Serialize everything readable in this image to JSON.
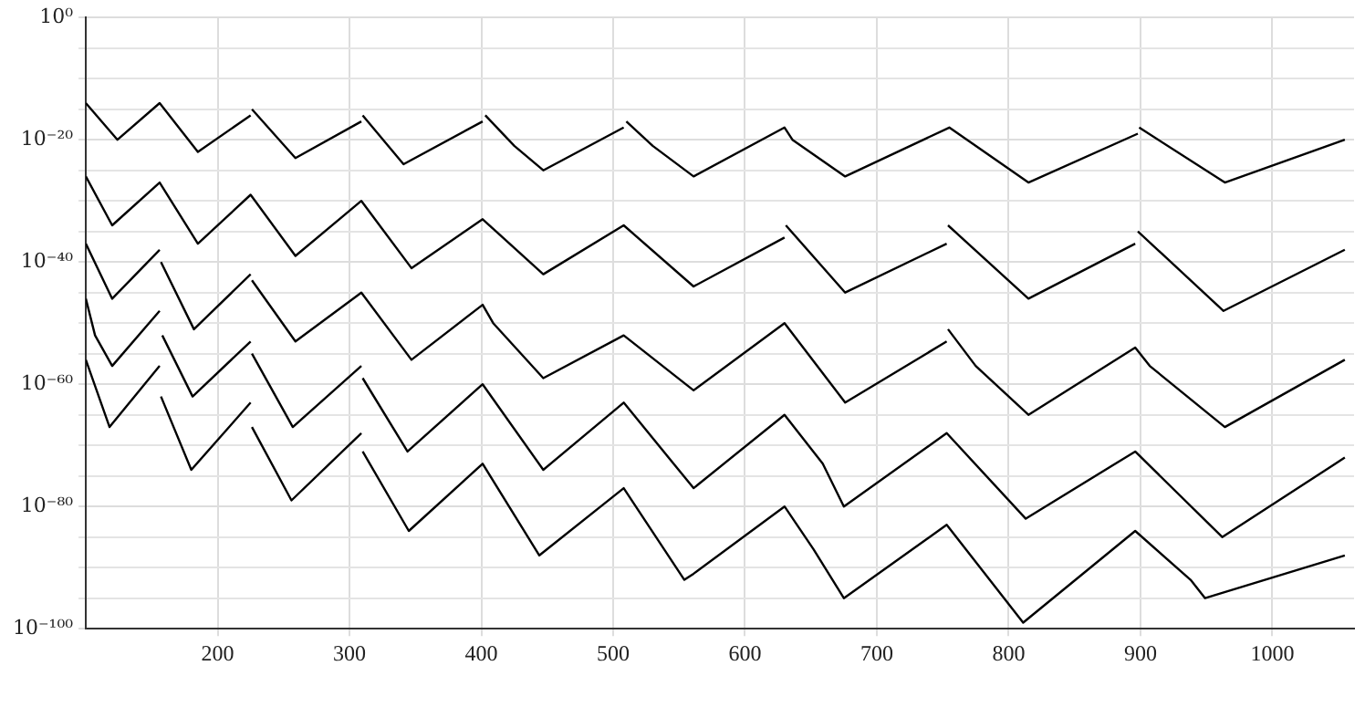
{
  "chart_data": {
    "type": "line",
    "marker": "none",
    "line_style": "solid",
    "grid": true,
    "legend": false,
    "log": "y",
    "xlim": [
      100,
      1062
    ],
    "xticks": [
      200,
      300,
      400,
      500,
      600,
      700,
      800,
      900,
      1000
    ],
    "ylim": [
      1e-100,
      1
    ],
    "yticks": [
      {
        "value": 1,
        "label": "10⁰"
      },
      {
        "value": 1e-05,
        "label": null
      },
      {
        "value": 1e-10,
        "label": null
      },
      {
        "value": 1e-15,
        "label": null
      },
      {
        "value": 1e-20,
        "label": "10⁻²⁰"
      },
      {
        "value": 1e-25,
        "label": null
      },
      {
        "value": 1e-30,
        "label": null
      },
      {
        "value": 1e-35,
        "label": null
      },
      {
        "value": 1e-40,
        "label": "10⁻⁴⁰"
      },
      {
        "value": 1e-45,
        "label": null
      },
      {
        "value": 1e-50,
        "label": null
      },
      {
        "value": 1e-55,
        "label": null
      },
      {
        "value": 1e-60,
        "label": "10⁻⁶⁰"
      },
      {
        "value": 1e-65,
        "label": null
      },
      {
        "value": 1e-70,
        "label": null
      },
      {
        "value": 1e-75,
        "label": null
      },
      {
        "value": 1e-80,
        "label": "10⁻⁸⁰"
      },
      {
        "value": 1e-85,
        "label": null
      },
      {
        "value": 1e-90,
        "label": null
      },
      {
        "value": 1e-95,
        "label": null
      },
      {
        "value": 1e-100,
        "label": "10⁻¹⁰⁰"
      }
    ],
    "series": [
      {
        "color": "#000000",
        "x": [
          100,
          124,
          156,
          185,
          225
        ],
        "values": [
          1e-14,
          1e-20,
          1e-14,
          1e-22,
          1e-16
        ]
      },
      {
        "color": "#000000",
        "x": [
          226,
          259,
          309
        ],
        "values": [
          1e-15,
          1e-23,
          1e-17
        ]
      },
      {
        "color": "#000000",
        "x": [
          310,
          341,
          401
        ],
        "values": [
          1e-16,
          1e-24,
          1e-17
        ]
      },
      {
        "color": "#000000",
        "x": [
          403,
          425,
          447,
          508
        ],
        "values": [
          1e-16,
          1e-21,
          1e-25,
          1e-18
        ]
      },
      {
        "color": "#000000",
        "x": [
          510,
          530,
          561,
          630,
          636,
          676,
          755,
          815,
          898
        ],
        "values": [
          1e-17,
          1e-21,
          1e-26,
          1e-18,
          1e-20,
          1e-26,
          1e-18,
          1e-27,
          1e-19
        ]
      },
      {
        "color": "#000000",
        "x": [
          899,
          964,
          1055
        ],
        "values": [
          1e-18,
          1e-27,
          1e-20
        ]
      },
      {
        "color": "#000000",
        "x": [
          100,
          120,
          156,
          185,
          225,
          259,
          309,
          347,
          401,
          447,
          508,
          561,
          630
        ],
        "values": [
          1e-26,
          1e-34,
          1e-27,
          1e-37,
          1e-29,
          1e-39,
          1e-30,
          1e-41,
          1e-33,
          1e-42,
          1e-34,
          1e-44,
          1e-36
        ]
      },
      {
        "color": "#000000",
        "x": [
          631,
          676,
          753
        ],
        "values": [
          1e-34,
          1e-45,
          1e-37
        ]
      },
      {
        "color": "#000000",
        "x": [
          754,
          815,
          896
        ],
        "values": [
          1e-34,
          1e-46,
          1e-37
        ]
      },
      {
        "color": "#000000",
        "x": [
          898,
          963,
          1055
        ],
        "values": [
          1e-35,
          1e-48,
          1e-38
        ]
      },
      {
        "color": "#000000",
        "x": [
          100,
          120,
          156
        ],
        "values": [
          1e-37,
          1e-46,
          1e-38
        ]
      },
      {
        "color": "#000000",
        "x": [
          157,
          182,
          225
        ],
        "values": [
          1e-40,
          1e-51,
          1e-42
        ]
      },
      {
        "color": "#000000",
        "x": [
          226,
          259,
          309,
          347,
          401,
          409,
          447,
          508,
          561,
          630,
          676,
          753
        ],
        "values": [
          1e-43,
          1e-53,
          1e-45,
          1e-56,
          1e-47,
          1e-50,
          1e-59,
          1e-52,
          1e-61,
          1e-50,
          1e-63,
          1e-53
        ]
      },
      {
        "color": "#000000",
        "x": [
          754,
          775,
          815,
          896,
          907,
          964,
          1055
        ],
        "values": [
          1e-51,
          1e-57,
          1e-65,
          1e-54,
          1e-57,
          1e-67,
          1e-56
        ]
      },
      {
        "color": "#000000",
        "x": [
          100,
          107,
          120,
          156
        ],
        "values": [
          1e-46,
          1e-52,
          1e-57,
          1e-48
        ]
      },
      {
        "color": "#000000",
        "x": [
          158,
          181,
          225
        ],
        "values": [
          1e-52,
          1e-62,
          1e-53
        ]
      },
      {
        "color": "#000000",
        "x": [
          226,
          257,
          309
        ],
        "values": [
          1e-55,
          1e-67,
          1e-57
        ]
      },
      {
        "color": "#000000",
        "x": [
          310,
          344,
          401,
          447,
          508,
          561,
          630,
          659,
          675,
          753,
          813,
          896,
          962,
          1055
        ],
        "values": [
          1e-59,
          1e-71,
          1e-60,
          1e-74,
          1e-63,
          1e-77,
          1e-65,
          1e-73,
          1e-80,
          1e-68,
          1e-82,
          1e-71,
          1e-85,
          1e-72
        ]
      },
      {
        "color": "#000000",
        "x": [
          100,
          118,
          156
        ],
        "values": [
          1e-56,
          1e-67,
          1e-57
        ]
      },
      {
        "color": "#000000",
        "x": [
          157,
          180,
          225
        ],
        "values": [
          1e-62,
          1e-74,
          1e-63
        ]
      },
      {
        "color": "#000000",
        "x": [
          226,
          256,
          309
        ],
        "values": [
          1e-67,
          1e-79,
          1e-68
        ]
      },
      {
        "color": "#000000",
        "x": [
          310,
          345,
          401,
          444,
          508,
          554,
          561,
          630,
          652,
          675,
          753,
          811,
          896,
          938,
          949,
          1055
        ],
        "values": [
          1e-71,
          1e-84,
          1e-73,
          1e-88,
          1e-77,
          1e-92,
          1e-91,
          1e-80,
          1e-87,
          1e-95,
          1e-83,
          1e-99,
          1e-84,
          1e-92,
          1e-95,
          1e-88
        ]
      }
    ]
  }
}
